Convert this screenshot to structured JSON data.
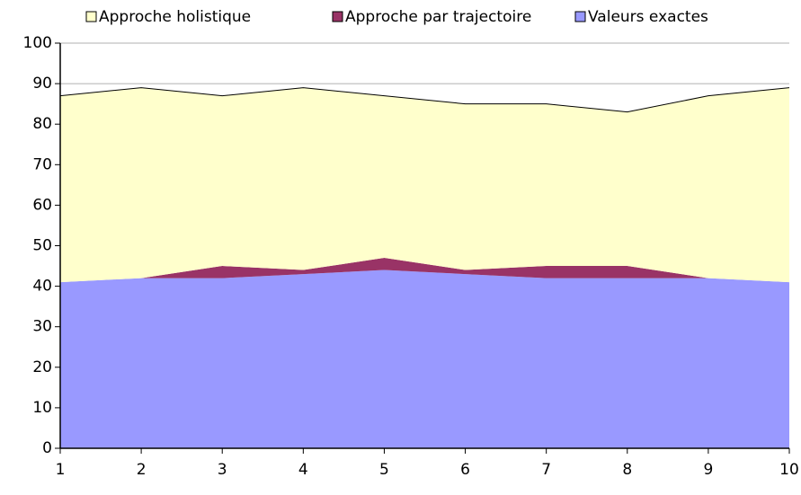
{
  "chart_data": {
    "type": "stacked_area",
    "x": [
      1,
      2,
      3,
      4,
      5,
      6,
      7,
      8,
      9,
      10
    ],
    "series": [
      {
        "name": "Valeurs exactes",
        "color": "#9999ff",
        "values": [
          41,
          42,
          42,
          43,
          44,
          43,
          42,
          42,
          42,
          41
        ]
      },
      {
        "name": "Approche par trajectoire",
        "color": "#993366",
        "values": [
          0,
          0,
          3,
          1,
          3,
          1,
          3,
          3,
          0,
          0
        ]
      },
      {
        "name": "Approche holistique",
        "color": "#ffffcc",
        "values": [
          46,
          47,
          42,
          45,
          40,
          41,
          40,
          38,
          45,
          48
        ]
      }
    ],
    "legend_order": [
      2,
      1,
      0
    ],
    "xlim": [
      1,
      10
    ],
    "xticks": [
      1,
      2,
      3,
      4,
      5,
      6,
      7,
      8,
      9,
      10
    ],
    "ylim": [
      0,
      100
    ],
    "yticks": [
      0,
      10,
      20,
      30,
      40,
      50,
      60,
      70,
      80,
      90,
      100
    ],
    "grid": true,
    "legend": "top"
  }
}
